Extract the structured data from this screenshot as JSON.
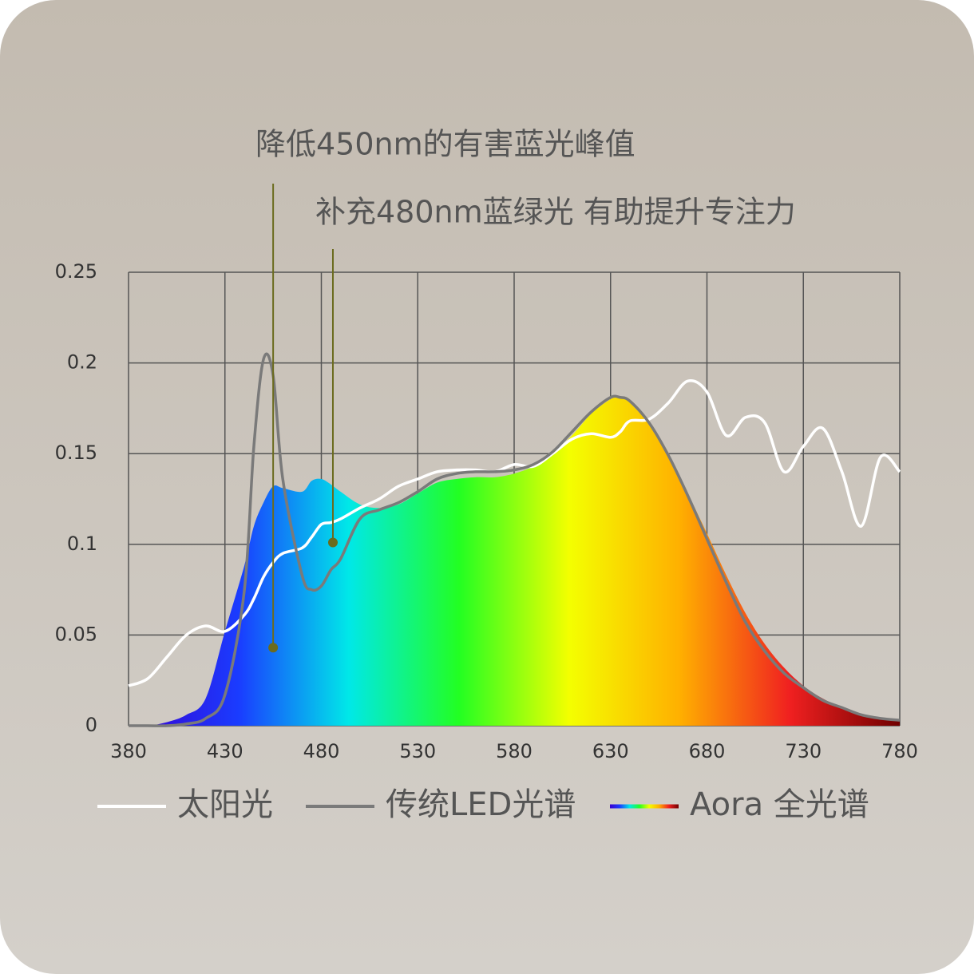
{
  "chart_data": {
    "type": "spectrum",
    "annotations": [
      {
        "text": "降低450nm的有害蓝光峰值",
        "x": 455,
        "y": 0.043
      },
      {
        "text": "补充480nm蓝绿光 有助提升专注力",
        "x": 486,
        "y": 0.101
      }
    ],
    "x": [
      380,
      390,
      400,
      410,
      420,
      430,
      440,
      445,
      450,
      455,
      460,
      470,
      475,
      480,
      485,
      490,
      500,
      510,
      520,
      530,
      540,
      550,
      560,
      570,
      580,
      590,
      600,
      610,
      620,
      630,
      635,
      640,
      650,
      660,
      670,
      680,
      690,
      700,
      710,
      720,
      730,
      740,
      750,
      760,
      770,
      780
    ],
    "series": [
      {
        "name": "Aora 全光谱",
        "kind": "area",
        "gradient": [
          "#3a00d0",
          "#1a3cff",
          "#00e8e8",
          "#22ff22",
          "#f4ff00",
          "#ffb000",
          "#f02020",
          "#700000"
        ],
        "values": [
          0,
          0,
          0.002,
          0.006,
          0.015,
          0.052,
          0.088,
          0.11,
          0.123,
          0.132,
          0.131,
          0.129,
          0.135,
          0.136,
          0.133,
          0.129,
          0.122,
          0.12,
          0.122,
          0.128,
          0.134,
          0.136,
          0.137,
          0.137,
          0.139,
          0.143,
          0.15,
          0.16,
          0.172,
          0.18,
          0.181,
          0.178,
          0.166,
          0.148,
          0.128,
          0.106,
          0.083,
          0.062,
          0.045,
          0.032,
          0.022,
          0.015,
          0.01,
          0.006,
          0.004,
          0.003
        ]
      },
      {
        "name": "太阳光",
        "kind": "line",
        "color": "#ffffff",
        "values": [
          0.022,
          0.026,
          0.038,
          0.05,
          0.055,
          0.052,
          0.061,
          0.07,
          0.082,
          0.09,
          0.095,
          0.098,
          0.104,
          0.111,
          0.112,
          0.114,
          0.12,
          0.125,
          0.132,
          0.136,
          0.14,
          0.141,
          0.141,
          0.14,
          0.144,
          0.143,
          0.15,
          0.158,
          0.161,
          0.159,
          0.162,
          0.168,
          0.169,
          0.178,
          0.19,
          0.184,
          0.16,
          0.17,
          0.167,
          0.14,
          0.154,
          0.164,
          0.14,
          0.11,
          0.148,
          0.14
        ]
      },
      {
        "name": "传统LED光谱",
        "kind": "line",
        "color": "#7a7a7a",
        "values": [
          0,
          0,
          0,
          0.001,
          0.004,
          0.017,
          0.074,
          0.154,
          0.202,
          0.193,
          0.136,
          0.083,
          0.075,
          0.077,
          0.086,
          0.092,
          0.114,
          0.119,
          0.123,
          0.129,
          0.136,
          0.139,
          0.14,
          0.14,
          0.141,
          0.144,
          0.151,
          0.162,
          0.173,
          0.181,
          0.181,
          0.179,
          0.167,
          0.149,
          0.127,
          0.103,
          0.079,
          0.057,
          0.041,
          0.029,
          0.021,
          0.014,
          0.01,
          0.006,
          0.004,
          0.003
        ]
      }
    ],
    "xlim": [
      380,
      780
    ],
    "xticks": [
      380,
      430,
      480,
      530,
      580,
      630,
      680,
      730,
      780
    ],
    "ylim": [
      0,
      0.25
    ],
    "yticks": [
      0,
      0.05,
      {
        "value": 0.1,
        "label": "0.1"
      },
      0.15,
      {
        "value": 0.2,
        "label": "0.2"
      },
      0.25
    ],
    "grid": true,
    "annotation_color": "#6b6b1e"
  }
}
